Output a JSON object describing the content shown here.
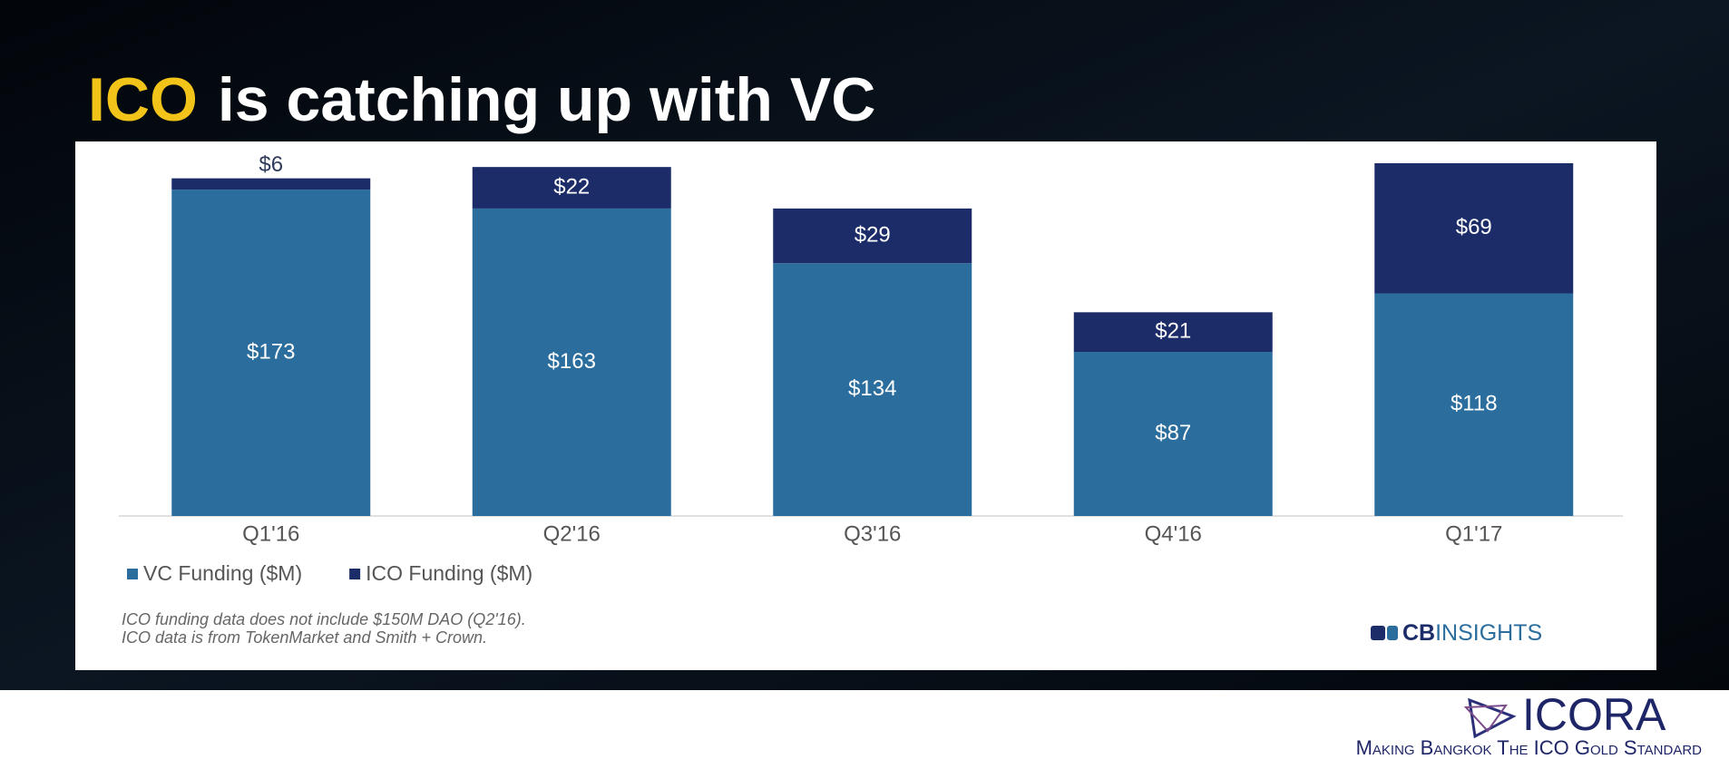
{
  "title": {
    "highlight": "ICO",
    "rest": "is catching up with VC"
  },
  "chart_data": {
    "type": "stacked_bar",
    "categories": [
      "Q1'16",
      "Q2'16",
      "Q3'16",
      "Q4'16",
      "Q1'17"
    ],
    "series": [
      {
        "name": "VC Funding ($M)",
        "color": "#2b6e9e",
        "values": [
          173,
          163,
          134,
          87,
          118
        ],
        "value_labels": [
          "$173",
          "$163",
          "$134",
          "$87",
          "$118"
        ]
      },
      {
        "name": "ICO Funding ($M)",
        "color": "#1b2c68",
        "values": [
          6,
          22,
          29,
          21,
          69
        ],
        "value_labels": [
          "$6",
          "$22",
          "$29",
          "$21",
          "$69"
        ]
      }
    ],
    "notes": [
      "ICO funding data does not include $150M DAO (Q2'16).",
      "ICO data is from TokenMarket and Smith + Crown."
    ]
  },
  "logo": {
    "cb": "CB",
    "insights": "INSIGHTS"
  },
  "footer": {
    "brand": "ICORA",
    "tagline": "Making Bangkok The ICO Gold Standard"
  }
}
